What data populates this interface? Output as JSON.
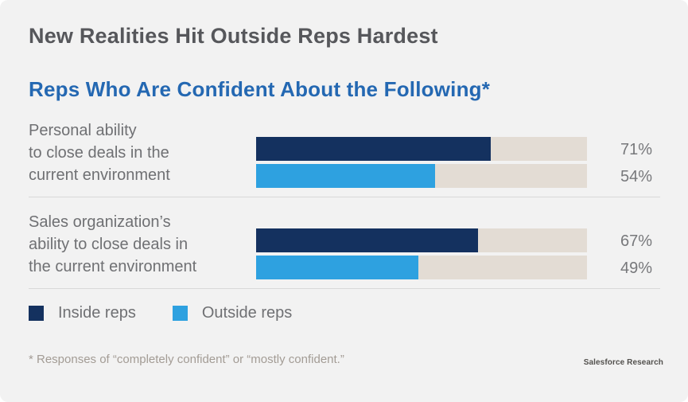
{
  "header": {
    "title": "New Realities Hit Outside Reps Hardest",
    "subtitle": "Reps Who Are Confident About the Following*"
  },
  "rows": [
    {
      "label_lines": [
        "Personal ability",
        "to close deals in the",
        "current environment"
      ],
      "inside_value": 71,
      "outside_value": 54,
      "inside_pct": "71%",
      "outside_pct": "54%"
    },
    {
      "label_lines": [
        "Sales organization’s",
        "ability to close deals in",
        "the current environment"
      ],
      "inside_value": 67,
      "outside_value": 49,
      "inside_pct": "67%",
      "outside_pct": "49%"
    }
  ],
  "legend": {
    "inside_label": "Inside reps",
    "outside_label": "Outside reps"
  },
  "footnote": "* Responses of “completely confident” or “mostly confident.”",
  "source": "Salesforce Research",
  "colors": {
    "background": "#f2f2f2",
    "inside_reps": "#14315f",
    "outside_reps": "#2ea1e0",
    "bar_track": "#e3dcd4",
    "title_text": "#56575b",
    "subtitle_text": "#2468b2",
    "label_text": "#6f7073",
    "footnote_text": "#a39c95",
    "divider": "#d9d9d9"
  },
  "chart_data": {
    "type": "bar",
    "orientation": "horizontal",
    "title": "New Realities Hit Outside Reps Hardest",
    "subtitle": "Reps Who Are Confident About the Following*",
    "categories": [
      "Personal ability to close deals in the current environment",
      "Sales organization’s ability to close deals in the current environment"
    ],
    "series": [
      {
        "name": "Inside reps",
        "values": [
          71,
          67
        ],
        "color": "#14315f"
      },
      {
        "name": "Outside reps",
        "values": [
          54,
          49
        ],
        "color": "#2ea1e0"
      }
    ],
    "value_suffix": "%",
    "xlim": [
      0,
      100
    ],
    "grid": false,
    "legend_position": "bottom-left",
    "annotations": [
      "* Responses of “completely confident” or “mostly confident.”",
      "Salesforce Research"
    ]
  }
}
